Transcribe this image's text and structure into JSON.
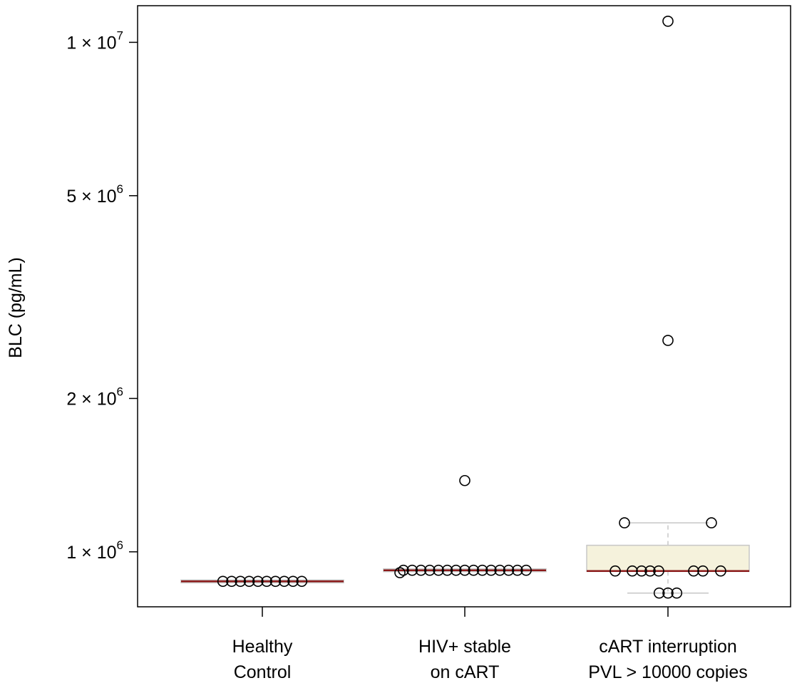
{
  "chart_data": {
    "type": "box",
    "ylabel": "BLC (pg/mL)",
    "y_scale": "log",
    "ylim": [
      780000,
      11800000
    ],
    "yticks": [
      {
        "value": 1000000,
        "mantissa": "1",
        "exponent": "6"
      },
      {
        "value": 2000000,
        "mantissa": "2",
        "exponent": "6"
      },
      {
        "value": 5000000,
        "mantissa": "5",
        "exponent": "6"
      },
      {
        "value": 10000000,
        "mantissa": "1",
        "exponent": "7"
      }
    ],
    "tick_times": "×",
    "tick_base": "10",
    "categories": [
      {
        "line1": "Healthy",
        "line2": "Control"
      },
      {
        "line1": "HIV+ stable",
        "line2": "on cART"
      },
      {
        "line1": "cART interruption",
        "line2": "PVL > 10000 copies"
      }
    ],
    "groups": [
      {
        "name": "Healthy Control",
        "box": {
          "q1": 875000,
          "median": 875000,
          "q3": 875000,
          "whisker_low": 875000,
          "whisker_high": 875000
        },
        "points": [
          875000,
          875000,
          875000,
          875000,
          875000,
          875000,
          875000,
          875000,
          875000,
          875000
        ]
      },
      {
        "name": "HIV+ stable on cART",
        "box": {
          "q1": 920000,
          "median": 920000,
          "q3": 920000,
          "whisker_low": 920000,
          "whisker_high": 920000
        },
        "points": [
          910000,
          920000,
          920000,
          920000,
          920000,
          920000,
          920000,
          920000,
          920000,
          920000,
          920000,
          920000,
          920000,
          920000,
          920000,
          920000,
          1380000
        ]
      },
      {
        "name": "cART interruption PVL > 10000 copies",
        "box": {
          "q1": 915000,
          "median": 917000,
          "q3": 1030000,
          "whisker_low": 830000,
          "whisker_high": 1140000
        },
        "points": [
          830000,
          830000,
          830000,
          917000,
          917000,
          917000,
          917000,
          917000,
          917000,
          917000,
          917000,
          1140000,
          1140000,
          2600000,
          11000000
        ]
      }
    ],
    "colors": {
      "box_fill": "#f5f2dc",
      "box_border": "#c7c7c7",
      "whisker": "#c7c7c7",
      "median": "#8b1a1a",
      "axis": "#000000",
      "point_stroke": "#000000"
    }
  }
}
